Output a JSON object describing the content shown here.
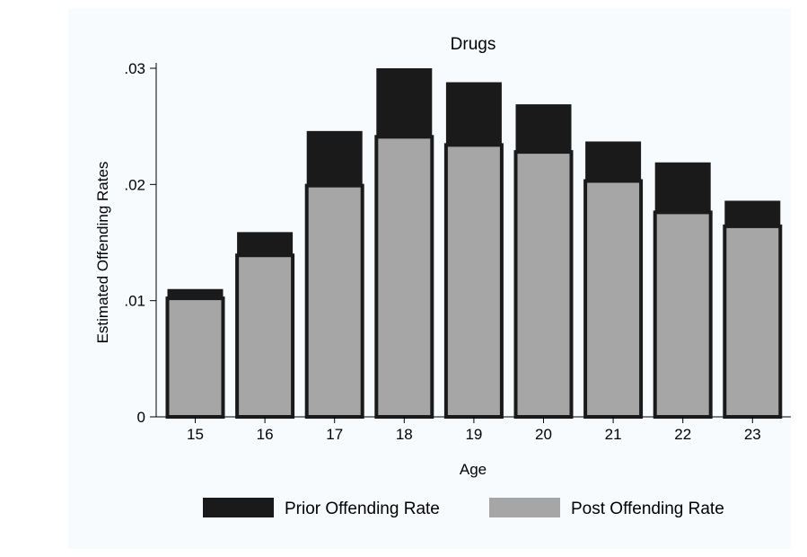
{
  "chart_data": {
    "type": "bar",
    "stacked": true,
    "title": "Drugs",
    "xlabel": "Age",
    "ylabel": "Estimated Offending Rates",
    "categories": [
      "15",
      "16",
      "17",
      "18",
      "19",
      "20",
      "21",
      "22",
      "23"
    ],
    "series": [
      {
        "name": "Post Offending Rate",
        "color": "#a6a6a6",
        "values": [
          0.0102,
          0.0139,
          0.0199,
          0.0241,
          0.0234,
          0.0228,
          0.0203,
          0.0176,
          0.0164
        ]
      },
      {
        "name": "Prior Offending Rate",
        "color": "#1a1a1a",
        "values": [
          0.0008,
          0.002,
          0.0047,
          0.0059,
          0.0054,
          0.0041,
          0.0034,
          0.0043,
          0.0022
        ]
      }
    ],
    "ylim": [
      0,
      0.03
    ],
    "yticks": [
      0,
      0.01,
      0.02,
      0.03
    ],
    "ytick_labels": [
      "0",
      ".01",
      ".02",
      ".03"
    ],
    "legend": {
      "placement": "bottom",
      "entries": [
        "Prior Offending Rate",
        "Post Offending Rate"
      ]
    },
    "grid": false
  }
}
